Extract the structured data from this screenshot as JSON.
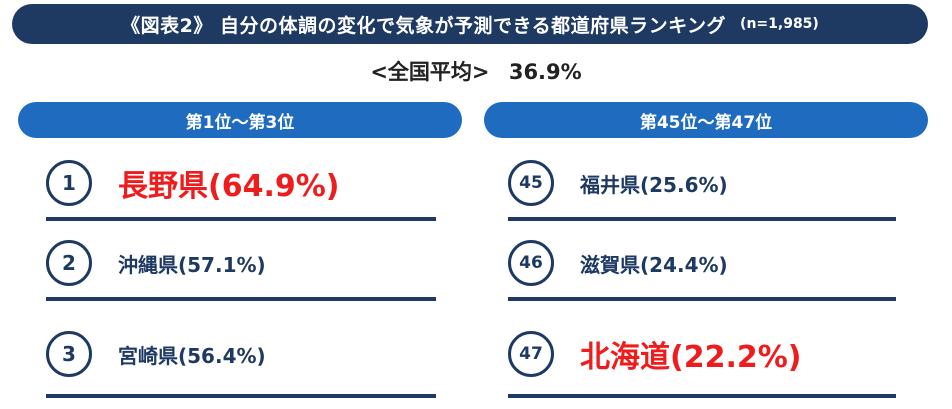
{
  "header": {
    "title": "《図表2》 自分の体調の変化で気象が予測できる都道府県ランキング",
    "sample_note": "(n=1,985)"
  },
  "average": {
    "label": "<全国平均>",
    "value": "36.9%"
  },
  "columns": [
    {
      "title": "第1位～第3位",
      "items": [
        {
          "rank": "1",
          "text": "長野県(64.9%)"
        },
        {
          "rank": "2",
          "text": "沖縄県(57.1%)"
        },
        {
          "rank": "3",
          "text": "宮崎県(56.4%)"
        }
      ]
    },
    {
      "title": "第45位～第47位",
      "items": [
        {
          "rank": "45",
          "text": "福井県(25.6%)"
        },
        {
          "rank": "46",
          "text": "滋賀県(24.4%)"
        },
        {
          "rank": "47",
          "text": "北海道(22.2%)"
        }
      ]
    }
  ],
  "colors": {
    "navy": "#1e3a63",
    "blue": "#1f6bbf",
    "highlight_red": "#ee1c1c"
  }
}
